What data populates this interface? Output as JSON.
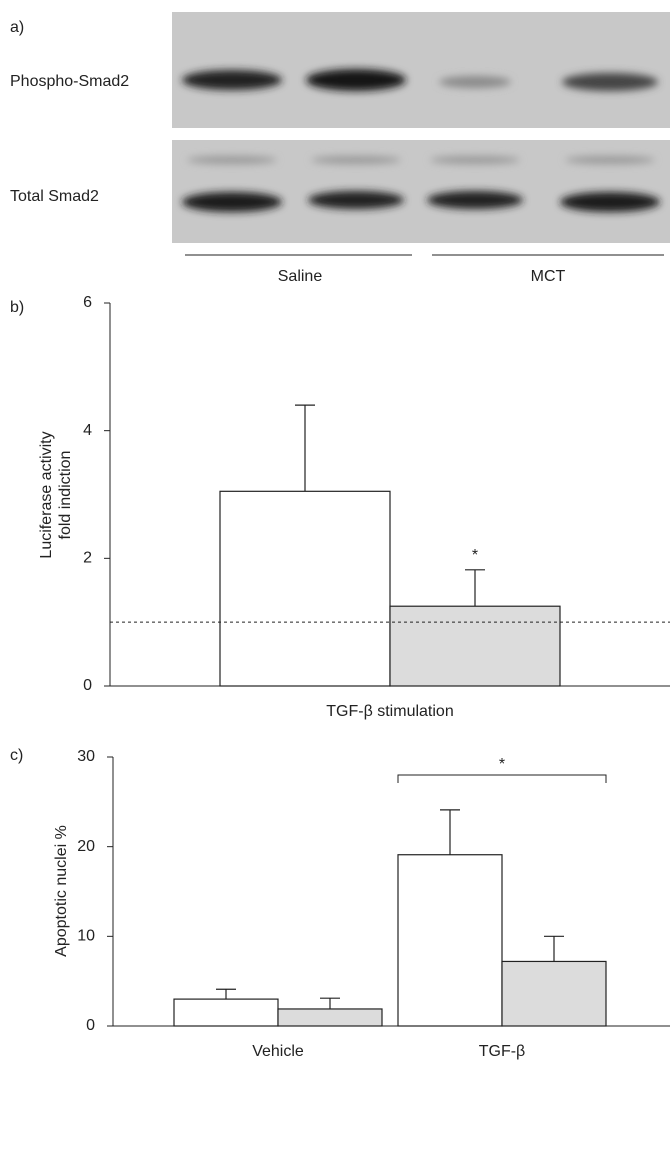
{
  "blot": {
    "label": "a)",
    "rows": [
      "Phospho-Smad2",
      "Total Smad2"
    ],
    "groups": [
      "Saline",
      "MCT"
    ]
  },
  "chart_data": [
    {
      "type": "bar",
      "panel_label": "b)",
      "ylabel": [
        "Luciferase activity",
        "fold indiction"
      ],
      "categories": [
        "TGF-β stimulation"
      ],
      "series": [
        {
          "color": "#ffffff",
          "values": [
            3.05
          ],
          "errors": [
            1.35
          ]
        },
        {
          "color": "#dcdcdc",
          "values": [
            1.25
          ],
          "errors": [
            0.57
          ]
        }
      ],
      "ylim": [
        0,
        6
      ],
      "yticks": [
        0,
        2,
        4,
        6
      ],
      "reference_line": 1,
      "significance": {
        "label": "*",
        "series": 1,
        "category": 0
      }
    },
    {
      "type": "bar",
      "panel_label": "c)",
      "ylabel": "Apoptotic nuclei %",
      "categories": [
        "Vehicle",
        "TGF-β"
      ],
      "series": [
        {
          "color": "#ffffff",
          "values": [
            3,
            19.1
          ],
          "errors": [
            1.1,
            5
          ]
        },
        {
          "color": "#dcdcdc",
          "values": [
            1.9,
            7.2
          ],
          "errors": [
            1.2,
            2.8
          ]
        }
      ],
      "ylim": [
        0,
        30
      ],
      "yticks": [
        0,
        10,
        20,
        30
      ],
      "bracket": {
        "label": "*",
        "category": 1
      }
    }
  ]
}
